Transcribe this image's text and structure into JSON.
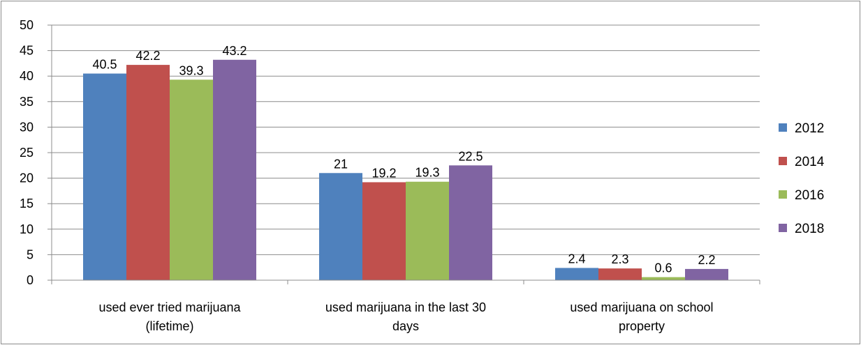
{
  "chart_data": {
    "type": "bar",
    "title": "",
    "xlabel": "",
    "ylabel": "",
    "ylim": [
      0,
      50
    ],
    "yticks": [
      0,
      5,
      10,
      15,
      20,
      25,
      30,
      35,
      40,
      45,
      50
    ],
    "grid": true,
    "legend_position": "right",
    "categories": [
      [
        "used ever tried marijuana",
        "(lifetime)"
      ],
      [
        "used marijuana in the last 30",
        "days"
      ],
      [
        "used marijuana on school",
        "property"
      ]
    ],
    "series": [
      {
        "name": "2012",
        "color": "#4f81bd",
        "values": [
          40.5,
          21,
          2.4
        ]
      },
      {
        "name": "2014",
        "color": "#c0504d",
        "values": [
          42.2,
          19.2,
          2.3
        ]
      },
      {
        "name": "2016",
        "color": "#9bbb59",
        "values": [
          39.3,
          19.3,
          0.6
        ]
      },
      {
        "name": "2018",
        "color": "#8064a2",
        "values": [
          43.2,
          22.5,
          2.2
        ]
      }
    ]
  }
}
